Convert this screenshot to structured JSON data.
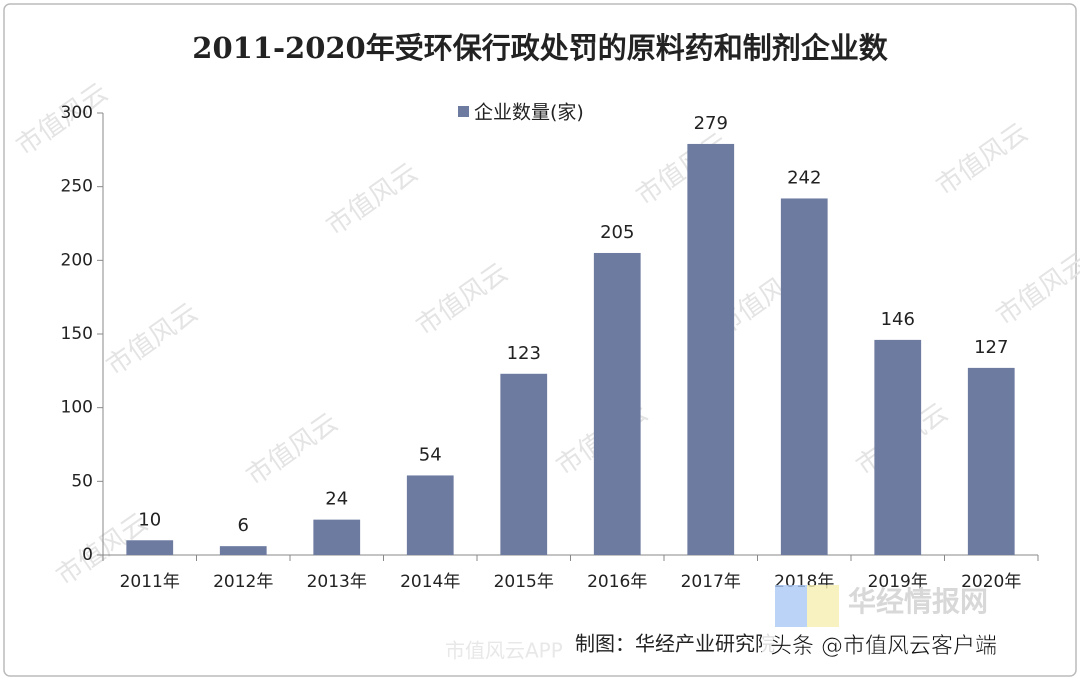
{
  "chart_data": {
    "type": "bar",
    "title": "2011-2020年受环保行政处罚的原料药和制剂企业数",
    "categories": [
      "2011年",
      "2012年",
      "2013年",
      "2014年",
      "2015年",
      "2016年",
      "2017年",
      "2018年",
      "2019年",
      "2020年"
    ],
    "series": [
      {
        "name": "企业数量(家)",
        "color": "#6d7ba1",
        "values": [
          10,
          6,
          24,
          54,
          123,
          205,
          279,
          242,
          146,
          127
        ]
      }
    ],
    "ylim": [
      0,
      300
    ],
    "yticks": [
      0,
      50,
      100,
      150,
      200,
      250,
      300
    ],
    "legend": "top",
    "grid": false,
    "source": "制图：华经产业研究院",
    "watermarks": [
      "市值风云",
      "华经情报网",
      "市值风云APP",
      "头条 @市值风云客户端"
    ]
  }
}
